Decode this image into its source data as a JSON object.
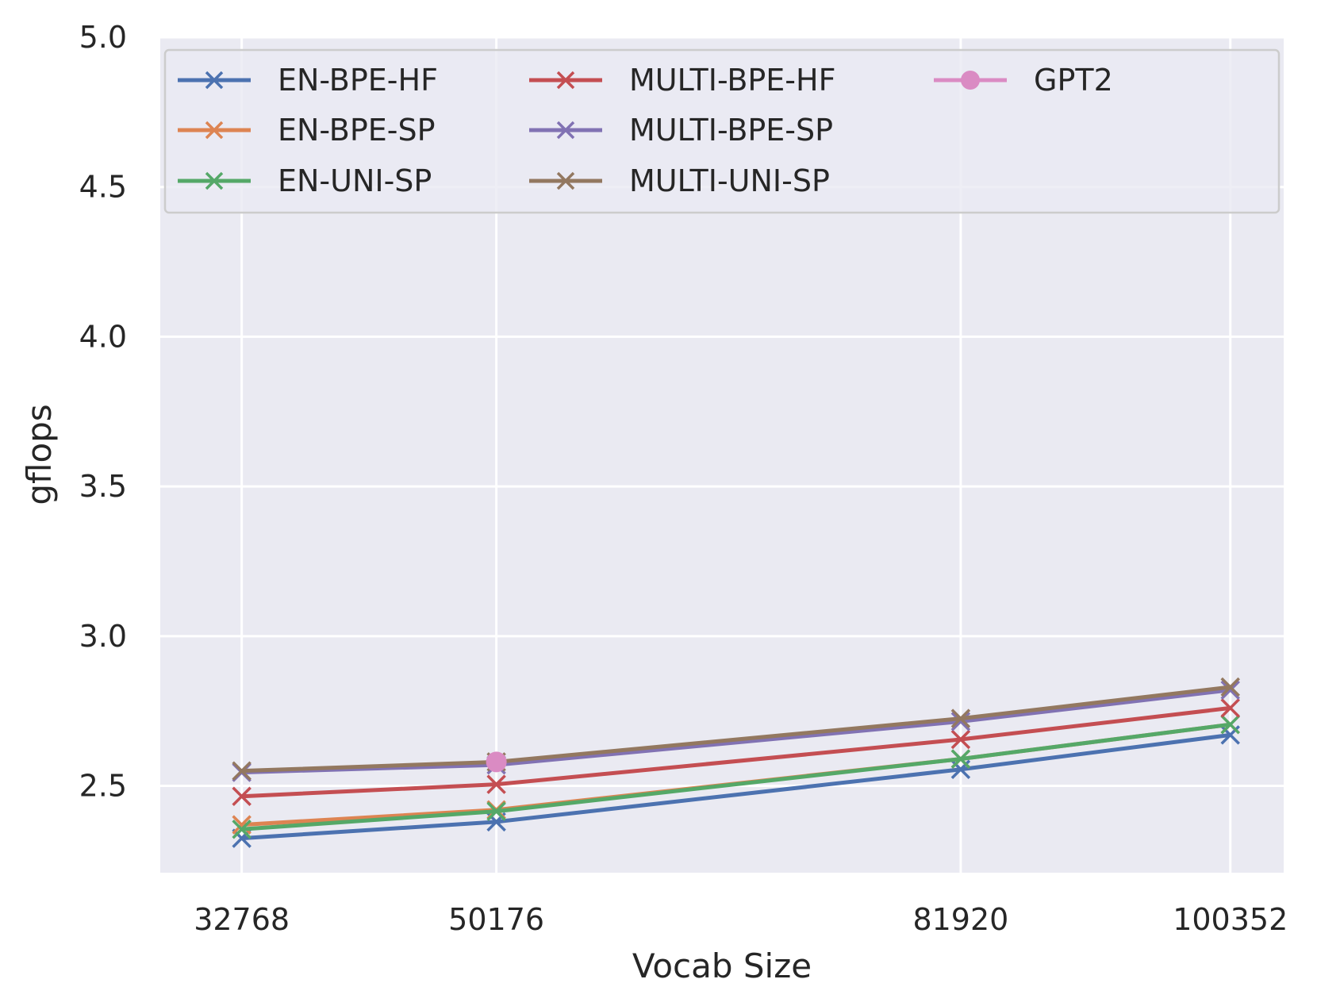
{
  "chart_data": {
    "type": "line",
    "xlabel": "Vocab Size",
    "ylabel": "gflops",
    "x": [
      32768,
      50176,
      81920,
      100352
    ],
    "xticks": [
      "32768",
      "50176",
      "81920",
      "100352"
    ],
    "yticks": [
      "2.5",
      "3.0",
      "3.5",
      "4.0",
      "4.5",
      "5.0"
    ],
    "ylim": [
      2.21,
      5.0
    ],
    "grid": true,
    "legend_position": "top",
    "series": [
      {
        "name": "EN-BPE-HF",
        "color": "#4c72b0",
        "marker": "x",
        "x": [
          32768,
          50176,
          81920,
          100352
        ],
        "values": [
          2.325,
          2.38,
          2.555,
          2.67
        ]
      },
      {
        "name": "EN-BPE-SP",
        "color": "#dd8452",
        "marker": "x",
        "x": [
          32768,
          50176,
          81920,
          100352
        ],
        "values": [
          2.37,
          2.42,
          2.59,
          2.705
        ]
      },
      {
        "name": "EN-UNI-SP",
        "color": "#55a868",
        "marker": "x",
        "x": [
          32768,
          50176,
          81920,
          100352
        ],
        "values": [
          2.355,
          2.415,
          2.59,
          2.705
        ]
      },
      {
        "name": "MULTI-BPE-HF",
        "color": "#c44e52",
        "marker": "x",
        "x": [
          32768,
          50176,
          81920,
          100352
        ],
        "values": [
          2.465,
          2.505,
          2.655,
          2.76
        ]
      },
      {
        "name": "MULTI-BPE-SP",
        "color": "#8172b3",
        "marker": "x",
        "x": [
          32768,
          50176,
          81920,
          100352
        ],
        "values": [
          2.545,
          2.57,
          2.715,
          2.82
        ]
      },
      {
        "name": "MULTI-UNI-SP",
        "color": "#937860",
        "marker": "x",
        "x": [
          32768,
          50176,
          81920,
          100352
        ],
        "values": [
          2.55,
          2.58,
          2.725,
          2.83
        ]
      },
      {
        "name": "GPT2",
        "color": "#da8bc3",
        "marker": "o",
        "x": [
          50176
        ],
        "values": [
          2.58
        ]
      }
    ]
  }
}
